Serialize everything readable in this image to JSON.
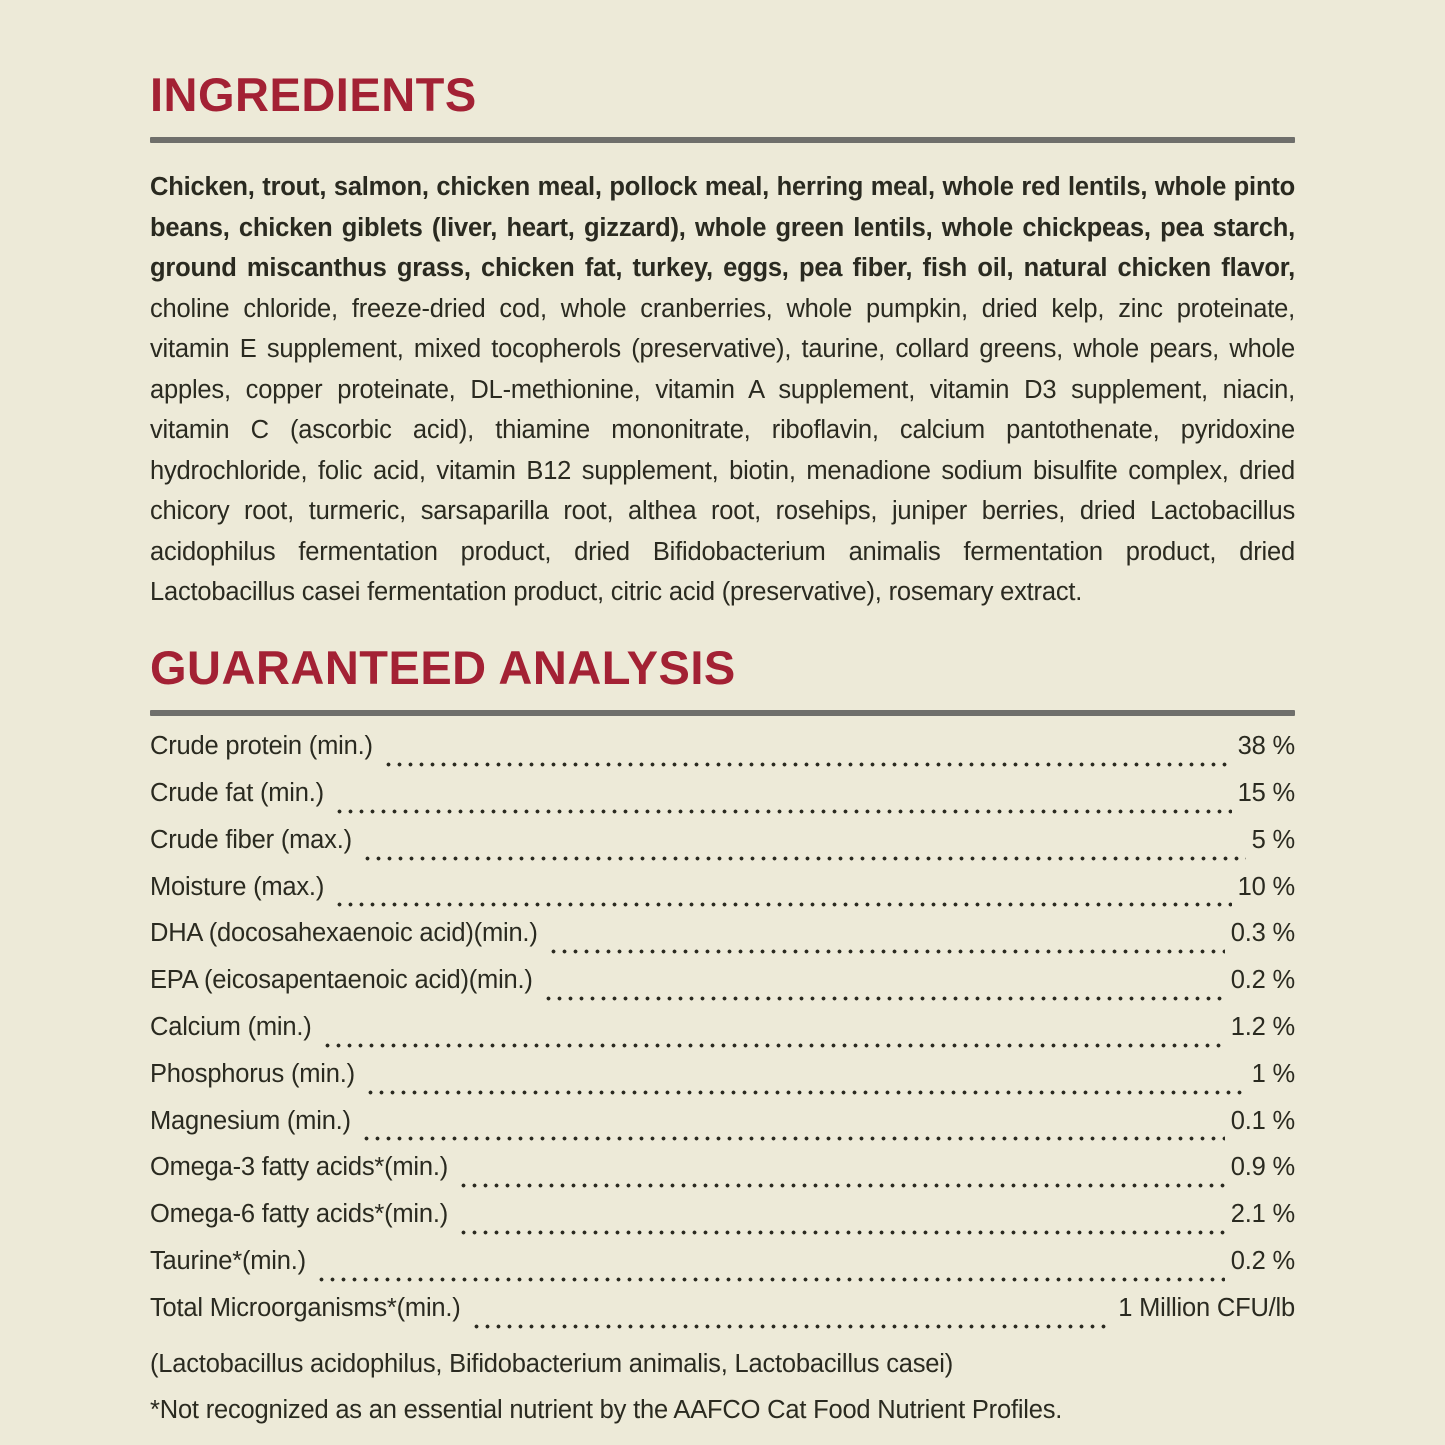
{
  "theme": {
    "bg": "#EDEAD8",
    "accent": "#A32134",
    "ink": "#2A2A20",
    "rule": "#6F6F6B"
  },
  "ingredients": {
    "title": "INGREDIENTS",
    "text_bold": "Chicken, trout, salmon, chicken meal, pollock meal, herring meal, whole red lentils, whole pinto beans, chicken giblets (liver, heart, gizzard), whole green lentils, whole chickpeas, pea starch, ground miscanthus grass, chicken fat, turkey, eggs, pea fiber, fish oil, natural chicken flavor,",
    "text_regular": " choline chloride, freeze-dried cod, whole cranberries, whole pumpkin, dried kelp, zinc proteinate, vitamin E supplement, mixed tocopherols (preservative), taurine, collard greens, whole pears, whole apples, copper proteinate, DL-methionine, vitamin A supplement, vitamin D3 supplement, niacin, vitamin C (ascorbic acid), thiamine mononitrate, riboflavin, calcium pantothenate, pyridoxine hydrochloride, folic acid, vitamin B12 supplement, biotin, menadione sodium bisulfite complex, dried chicory root, turmeric, sarsaparilla root, althea root, rosehips, juniper berries, dried Lactobacillus acidophilus fermentation product, dried Bifidobacterium animalis fermentation product, dried Lactobacillus casei fermentation product, citric acid (preservative), rosemary extract."
  },
  "guaranteed_analysis": {
    "title": "GUARANTEED ANALYSIS",
    "rows": [
      {
        "label": "Crude protein (min.)",
        "value": "38 %"
      },
      {
        "label": "Crude fat (min.)",
        "value": "15 %"
      },
      {
        "label": "Crude fiber (max.)",
        "value": "5 %"
      },
      {
        "label": "Moisture (max.)",
        "value": "10 %"
      },
      {
        "label": "DHA (docosahexaenoic acid)(min.)",
        "value": "0.3 %"
      },
      {
        "label": "EPA (eicosapentaenoic acid)(min.)",
        "value": "0.2 %"
      },
      {
        "label": "Calcium (min.)",
        "value": "1.2 %"
      },
      {
        "label": "Phosphorus (min.)",
        "value": "1 %"
      },
      {
        "label": "Magnesium (min.)",
        "value": "0.1 %"
      },
      {
        "label": "Omega-3 fatty acids*(min.)",
        "value": "0.9 %"
      },
      {
        "label": "Omega-6 fatty acids*(min.)",
        "value": "2.1 %"
      },
      {
        "label": "Taurine*(min.)",
        "value": "0.2 %"
      },
      {
        "label": "Total Microorganisms*(min.)",
        "value": "1 Million CFU/lb"
      }
    ],
    "microorganisms_note": "(Lactobacillus acidophilus, Bifidobacterium animalis, Lactobacillus casei)",
    "footnote": "*Not recognized as an essential nutrient by the AAFCO Cat Food Nutrient Profiles."
  }
}
